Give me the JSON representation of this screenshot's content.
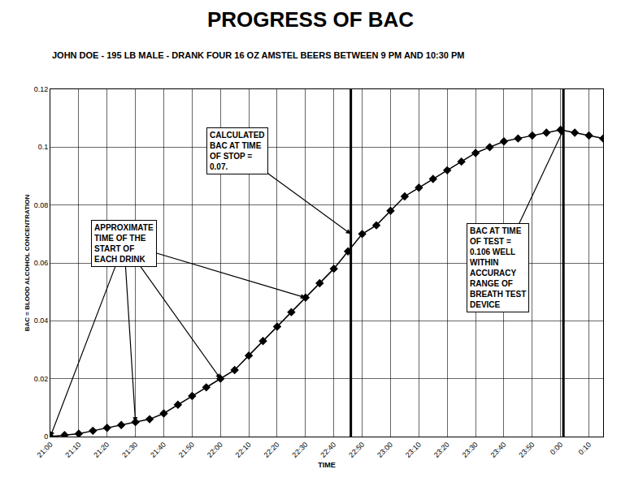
{
  "chart_data": {
    "type": "line",
    "title": "PROGRESS OF BAC",
    "subtitle": "JOHN DOE - 195 LB MALE - DRANK FOUR 16 OZ AMSTEL BEERS BETWEEN 9 PM AND 10:30 PM",
    "x_label": "TIME",
    "y_label": "BAC = BLOOD ALCOHOL CONCENTRATION",
    "x": [
      1260,
      1265,
      1270,
      1275,
      1280,
      1285,
      1290,
      1295,
      1300,
      1305,
      1310,
      1315,
      1320,
      1325,
      1330,
      1335,
      1340,
      1345,
      1350,
      1355,
      1360,
      1365,
      1370,
      1375,
      1380,
      1385,
      1390,
      1395,
      1400,
      1405,
      1410,
      1415,
      1420,
      1425,
      1430,
      1435,
      1440,
      1445,
      1450,
      1455
    ],
    "series": [
      {
        "color": "#000000",
        "marker": "diamond",
        "line_style": "solid",
        "values": [
          0,
          0.0005,
          0.001,
          0.002,
          0.003,
          0.004,
          0.005,
          0.006,
          0.008,
          0.011,
          0.014,
          0.017,
          0.02,
          0.023,
          0.028,
          0.033,
          0.038,
          0.043,
          0.048,
          0.053,
          0.058,
          0.064,
          0.07,
          0.073,
          0.078,
          0.083,
          0.086,
          0.089,
          0.092,
          0.095,
          0.098,
          0.1,
          0.102,
          0.103,
          0.104,
          0.105,
          0.106,
          0.105,
          0.104,
          0.103
        ]
      }
    ],
    "xlim": [
      1260,
      1455
    ],
    "xticks": [
      {
        "value": 1260,
        "label": "21:00"
      },
      {
        "value": 1270,
        "label": "21:10"
      },
      {
        "value": 1280,
        "label": "21:20"
      },
      {
        "value": 1290,
        "label": "21:30"
      },
      {
        "value": 1300,
        "label": "21:40"
      },
      {
        "value": 1310,
        "label": "21:50"
      },
      {
        "value": 1320,
        "label": "22:00"
      },
      {
        "value": 1330,
        "label": "22:10"
      },
      {
        "value": 1340,
        "label": "22:20"
      },
      {
        "value": 1350,
        "label": "22:30"
      },
      {
        "value": 1360,
        "label": "22:40"
      },
      {
        "value": 1370,
        "label": "22:50"
      },
      {
        "value": 1380,
        "label": "23:00"
      },
      {
        "value": 1390,
        "label": "23:10"
      },
      {
        "value": 1400,
        "label": "23:20"
      },
      {
        "value": 1410,
        "label": "23:30"
      },
      {
        "value": 1420,
        "label": "23:40"
      },
      {
        "value": 1430,
        "label": "23:50"
      },
      {
        "value": 1440,
        "label": "0:00"
      },
      {
        "value": 1450,
        "label": "0:10"
      }
    ],
    "ylim": [
      0,
      0.12
    ],
    "yticks": [
      0,
      0.02,
      0.04,
      0.06,
      0.08,
      0.1,
      0.12
    ],
    "grid": true,
    "vertical_lines": [
      1366,
      1441
    ],
    "annotations": [
      {
        "text": "CALCULATED BAC AT TIME OF STOP = 0.07.",
        "points": [
          {
            "x": 1366,
            "y": 0.07
          }
        ]
      },
      {
        "text": "APPROXIMATE TIME OF THE START OF EACH DRINK",
        "points": [
          {
            "x": 1260,
            "y": 0
          },
          {
            "x": 1290,
            "y": 0.005
          },
          {
            "x": 1320,
            "y": 0.02
          },
          {
            "x": 1350,
            "y": 0.048
          }
        ]
      },
      {
        "text": "BAC AT TIME OF TEST = 0.106 WELL WITHIN ACCURACY RANGE OF BREATH TEST DEVICE",
        "points": [
          {
            "x": 1441,
            "y": 0.106
          }
        ]
      }
    ]
  }
}
